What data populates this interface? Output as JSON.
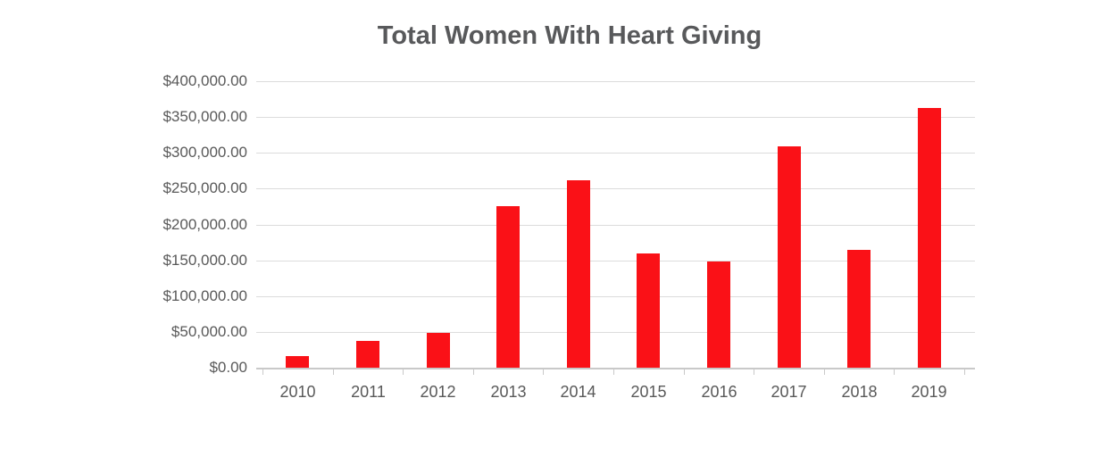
{
  "chart_data": {
    "type": "bar",
    "title": "Total Women With Heart Giving",
    "categories": [
      "2010",
      "2011",
      "2012",
      "2013",
      "2014",
      "2015",
      "2016",
      "2017",
      "2018",
      "2019"
    ],
    "values": [
      16000,
      38000,
      48000,
      225000,
      262000,
      159000,
      148000,
      309000,
      164000,
      363000
    ],
    "xlabel": "",
    "ylabel": "",
    "ylim": [
      0,
      400000
    ],
    "y_tick_labels": [
      "$0.00",
      "$50,000.00",
      "$100,000.00",
      "$150,000.00",
      "$200,000.00",
      "$250,000.00",
      "$300,000.00",
      "$350,000.00",
      "$400,000.00"
    ],
    "grid": "horizontal",
    "legend_position": "none",
    "bar_color": "#fa1117",
    "title_color": "#58595b",
    "label_color": "#595959",
    "gridline_color": "#dcdcdc",
    "axis_line_color": "#c9c9c9"
  }
}
